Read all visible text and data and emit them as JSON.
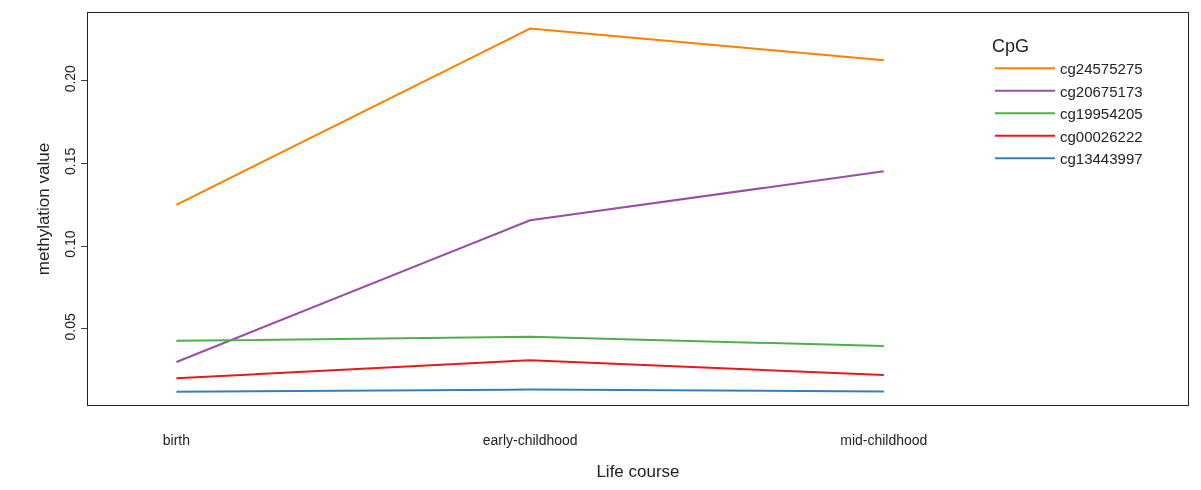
{
  "chart_data": {
    "type": "line",
    "xlabel": "Life course",
    "ylabel": "methylation value",
    "legend_title": "CpG",
    "legend": "top right",
    "marker": "none",
    "line_style": "solid",
    "categories": [
      "birth",
      "early-childhood",
      "mid-childhood"
    ],
    "ylim": [
      0.004,
      0.241
    ],
    "yticks": [
      {
        "value": 0.05,
        "label": "0.05"
      },
      {
        "value": 0.1,
        "label": "0.10"
      },
      {
        "value": 0.15,
        "label": "0.15"
      },
      {
        "value": 0.2,
        "label": "0.20"
      }
    ],
    "series": [
      {
        "name": "cg24575275",
        "color": "#ff7f00",
        "values": [
          0.125,
          0.2316,
          0.2125
        ]
      },
      {
        "name": "cg20675173",
        "color": "#984ea3",
        "values": [
          0.03,
          0.1157,
          0.1453
        ]
      },
      {
        "name": "cg19954205",
        "color": "#4daf4a",
        "values": [
          0.0428,
          0.0453,
          0.0396
        ]
      },
      {
        "name": "cg00026222",
        "color": "#e41a1c",
        "values": [
          0.0202,
          0.0311,
          0.0221
        ]
      },
      {
        "name": "cg13443997",
        "color": "#377eb8",
        "values": [
          0.012,
          0.0133,
          0.0122
        ]
      }
    ]
  }
}
